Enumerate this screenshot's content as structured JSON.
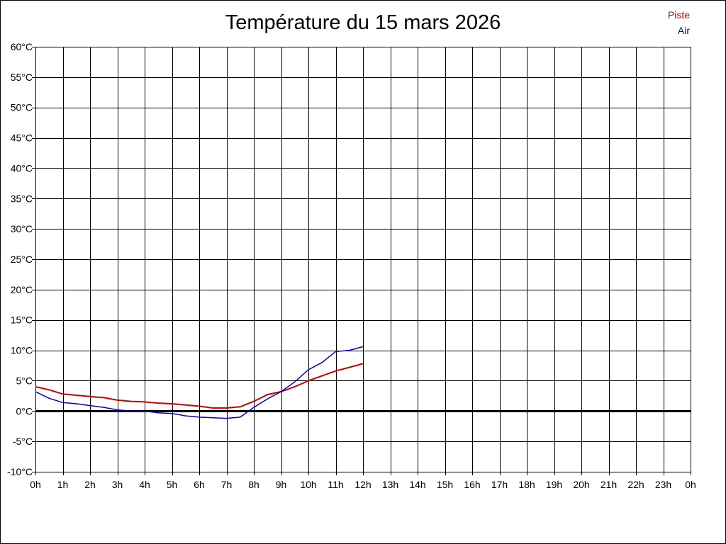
{
  "chart_data": {
    "type": "line",
    "title": "Température du 15 mars 2026",
    "xlabel": "",
    "ylabel": "",
    "x_tick_labels": [
      "0h",
      "1h",
      "2h",
      "3h",
      "4h",
      "5h",
      "6h",
      "7h",
      "8h",
      "9h",
      "10h",
      "11h",
      "12h",
      "13h",
      "14h",
      "15h",
      "16h",
      "17h",
      "18h",
      "19h",
      "20h",
      "21h",
      "22h",
      "23h",
      "0h"
    ],
    "y_tick_labels": [
      "60°C",
      "55°C",
      "50°C",
      "45°C",
      "40°C",
      "35°C",
      "30°C",
      "25°C",
      "20°C",
      "15°C",
      "10°C",
      "5°C",
      "0°C",
      "-5°C",
      "-10°C"
    ],
    "xlim": [
      0,
      24
    ],
    "ylim": [
      -10,
      60
    ],
    "grid": true,
    "legend_position": "top-right",
    "series": [
      {
        "name": "Piste",
        "color": "#cc0000",
        "x": [
          0,
          0.5,
          1,
          1.5,
          2,
          2.5,
          3,
          3.5,
          4,
          4.5,
          5,
          5.5,
          6,
          6.5,
          7,
          7.5,
          8,
          8.5,
          9,
          9.5,
          10,
          10.5,
          11,
          11.5,
          12
        ],
        "y": [
          4.0,
          3.5,
          2.8,
          2.6,
          2.4,
          2.2,
          1.8,
          1.6,
          1.5,
          1.3,
          1.2,
          1.0,
          0.8,
          0.5,
          0.5,
          0.7,
          1.6,
          2.7,
          3.2,
          4.0,
          5.0,
          5.8,
          6.6,
          7.2,
          7.8
        ]
      },
      {
        "name": "Air",
        "color": "#0000cc",
        "x": [
          0,
          0.5,
          1,
          1.5,
          2,
          2.5,
          3,
          3.5,
          4,
          4.5,
          5,
          5.5,
          6,
          6.5,
          7,
          7.5,
          8,
          8.5,
          9,
          9.5,
          10,
          10.5,
          11,
          11.5,
          12
        ],
        "y": [
          3.2,
          2.1,
          1.4,
          1.2,
          0.9,
          0.6,
          0.2,
          0.0,
          0.0,
          -0.3,
          -0.4,
          -0.8,
          -1.0,
          -1.1,
          -1.2,
          -1.0,
          0.6,
          2.0,
          3.2,
          4.8,
          6.8,
          8.0,
          9.8,
          10.0,
          10.6
        ]
      }
    ]
  }
}
